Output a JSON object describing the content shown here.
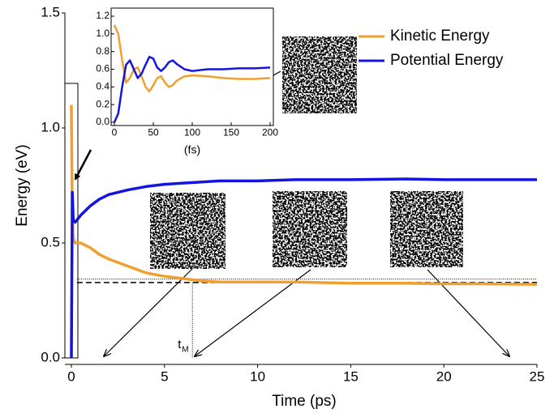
{
  "chart_data": [
    {
      "type": "line",
      "x_label": "Time (ps)",
      "y_label": "Energy (eV)",
      "x": [
        0,
        0.05,
        0.1,
        0.2,
        0.3,
        0.5,
        1,
        1.5,
        2,
        3,
        4,
        5,
        6,
        7,
        8,
        10,
        12,
        15,
        18,
        20,
        22,
        25
      ],
      "series": [
        {
          "name": "Kinetic Energy",
          "color": "#f0a030",
          "values": [
            1.1,
            0.6,
            0.52,
            0.5,
            0.5,
            0.5,
            0.48,
            0.45,
            0.43,
            0.4,
            0.37,
            0.355,
            0.345,
            0.335,
            0.33,
            0.33,
            0.33,
            0.325,
            0.325,
            0.322,
            0.322,
            0.32
          ]
        },
        {
          "name": "Potential Energy",
          "color": "#1414e0",
          "values": [
            0,
            0.72,
            0.6,
            0.59,
            0.6,
            0.62,
            0.66,
            0.69,
            0.71,
            0.73,
            0.745,
            0.755,
            0.76,
            0.765,
            0.77,
            0.77,
            0.775,
            0.775,
            0.778,
            0.775,
            0.775,
            0.775
          ]
        }
      ],
      "xlim": [
        0,
        25
      ],
      "xticks": [
        0,
        5,
        10,
        15,
        20,
        25
      ],
      "ylim": [
        0,
        1.5
      ],
      "yticks": [
        {
          "value": 0,
          "label": "0.0"
        },
        {
          "value": 0.5,
          "label": "0.5"
        },
        {
          "value": 1,
          "label": "1.0"
        },
        {
          "value": 1.5,
          "label": "1.5"
        }
      ],
      "legend": "upper right",
      "reference_levels": {
        "dotted": 0.343,
        "dashed": 0.328
      },
      "t_M": 6.5,
      "t_M_label": "t",
      "t_M_subscript": "M"
    },
    {
      "type": "line",
      "x_label": "(fs)",
      "x": [
        0,
        5,
        10,
        15,
        20,
        25,
        30,
        35,
        40,
        45,
        50,
        55,
        60,
        65,
        70,
        75,
        80,
        90,
        100,
        120,
        140,
        160,
        180,
        200
      ],
      "series": [
        {
          "name": "Kinetic Energy",
          "color": "#f0a030",
          "values": [
            1.1,
            1.0,
            0.7,
            0.45,
            0.5,
            0.6,
            0.62,
            0.52,
            0.4,
            0.35,
            0.42,
            0.5,
            0.52,
            0.45,
            0.4,
            0.42,
            0.47,
            0.52,
            0.53,
            0.52,
            0.5,
            0.49,
            0.49,
            0.5
          ]
        },
        {
          "name": "Potential Energy",
          "color": "#1414e0",
          "values": [
            0,
            0.1,
            0.4,
            0.65,
            0.7,
            0.6,
            0.5,
            0.55,
            0.65,
            0.74,
            0.72,
            0.62,
            0.58,
            0.62,
            0.68,
            0.7,
            0.66,
            0.6,
            0.58,
            0.6,
            0.6,
            0.61,
            0.61,
            0.62
          ]
        }
      ],
      "xlim": [
        0,
        200
      ],
      "xticks": [
        0,
        50,
        100,
        150,
        200
      ],
      "ylim": [
        0,
        1.2
      ],
      "yticks": [
        {
          "value": 0,
          "label": "0.0"
        },
        {
          "value": 0.2,
          "label": "0.2"
        },
        {
          "value": 0.4,
          "label": "0.4"
        },
        {
          "value": 0.6,
          "label": "0.6"
        },
        {
          "value": 0.8,
          "label": "0.8"
        },
        {
          "value": 1,
          "label": "1.0"
        },
        {
          "value": 1.2,
          "label": "1.2"
        }
      ]
    }
  ]
}
